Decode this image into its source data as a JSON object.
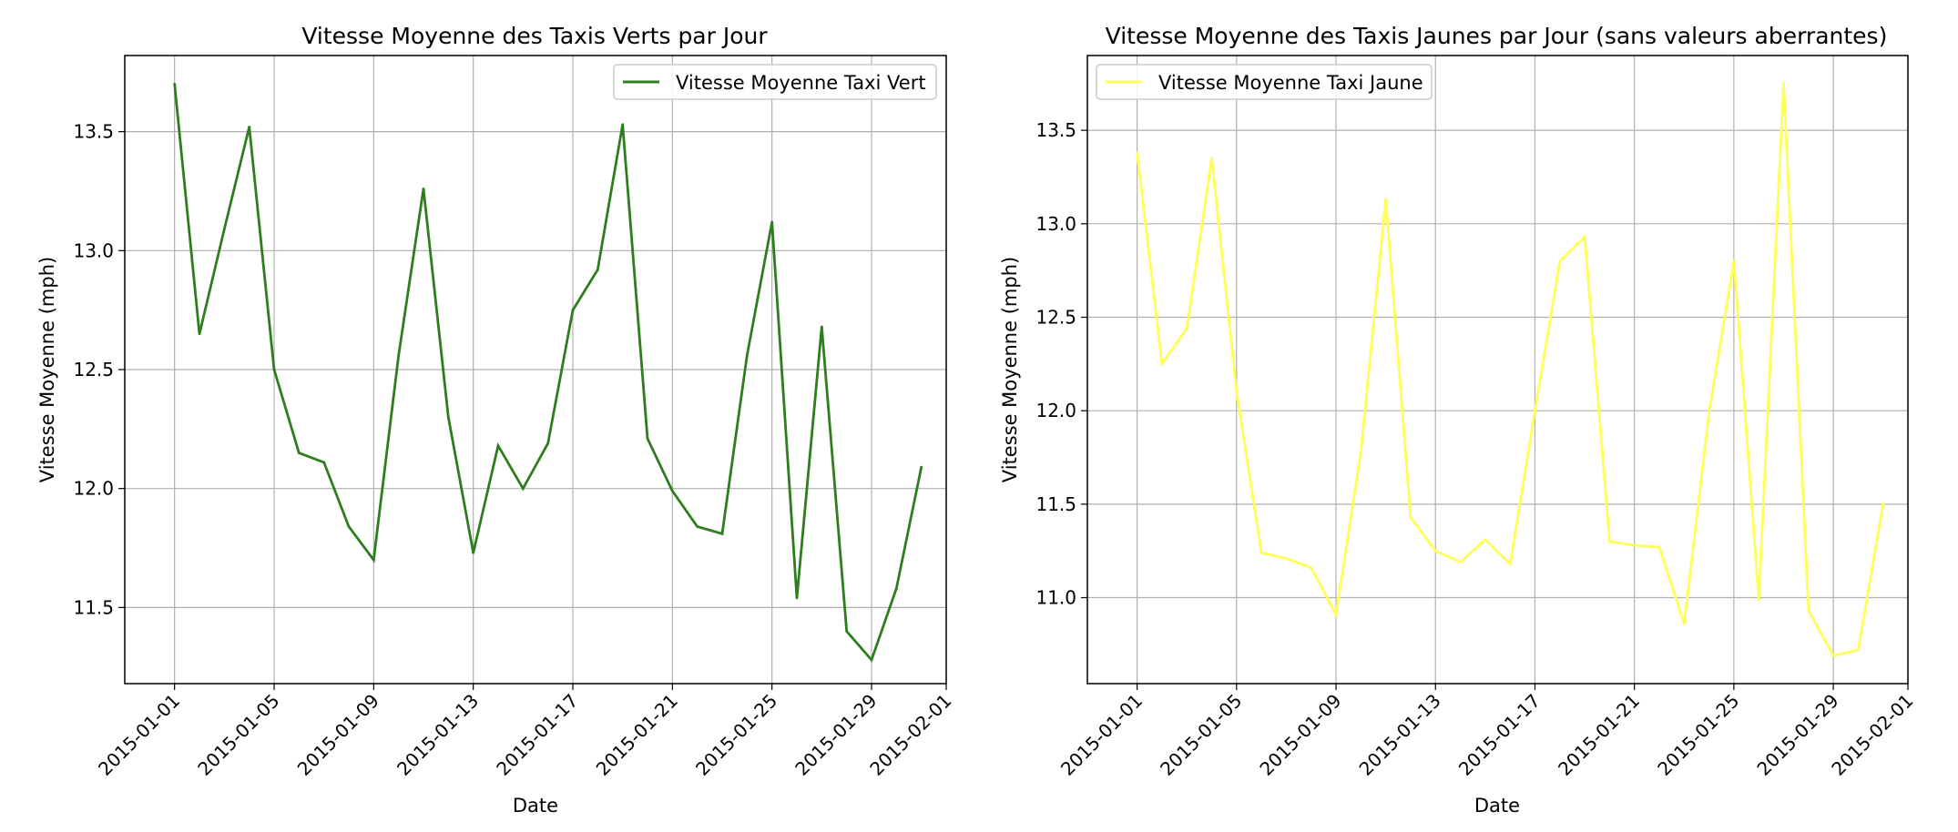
{
  "chart_data": [
    {
      "type": "line",
      "title": "Vitesse Moyenne des Taxis Verts par Jour",
      "xlabel": "Date",
      "ylabel": "Vitesse Moyenne (mph)",
      "x_ticks": [
        "2015-01-01",
        "2015-01-05",
        "2015-01-09",
        "2015-01-13",
        "2015-01-17",
        "2015-01-21",
        "2015-01-25",
        "2015-01-29",
        "2015-02-01"
      ],
      "y_ticks": [
        "11.5",
        "12.0",
        "12.5",
        "13.0",
        "13.5"
      ],
      "xlim": [
        "2014-12-30",
        "2015-02-01"
      ],
      "ylim": [
        11.18,
        13.82
      ],
      "grid": true,
      "legend_position": "top-right",
      "x": [
        "2015-01-01",
        "2015-01-02",
        "2015-01-03",
        "2015-01-04",
        "2015-01-05",
        "2015-01-06",
        "2015-01-07",
        "2015-01-08",
        "2015-01-09",
        "2015-01-10",
        "2015-01-11",
        "2015-01-12",
        "2015-01-13",
        "2015-01-14",
        "2015-01-15",
        "2015-01-16",
        "2015-01-17",
        "2015-01-18",
        "2015-01-19",
        "2015-01-20",
        "2015-01-21",
        "2015-01-22",
        "2015-01-23",
        "2015-01-24",
        "2015-01-25",
        "2015-01-26",
        "2015-01-27",
        "2015-01-28",
        "2015-01-29",
        "2015-01-30",
        "2015-01-31"
      ],
      "series": [
        {
          "name": "Vitesse Moyenne Taxi Vert",
          "color": "#2e7d1e",
          "values": [
            13.7,
            12.65,
            13.09,
            13.52,
            12.5,
            12.15,
            12.11,
            11.84,
            11.7,
            12.56,
            13.26,
            12.3,
            11.73,
            12.18,
            12.0,
            12.19,
            12.75,
            12.92,
            13.53,
            12.21,
            11.99,
            11.84,
            11.81,
            12.56,
            13.12,
            11.54,
            12.68,
            11.4,
            11.28,
            11.58,
            12.09
          ]
        }
      ]
    },
    {
      "type": "line",
      "title": "Vitesse Moyenne des Taxis Jaunes par Jour (sans valeurs aberrantes)",
      "xlabel": "Date",
      "ylabel": "Vitesse Moyenne (mph)",
      "x_ticks": [
        "2015-01-01",
        "2015-01-05",
        "2015-01-09",
        "2015-01-13",
        "2015-01-17",
        "2015-01-21",
        "2015-01-25",
        "2015-01-29",
        "2015-02-01"
      ],
      "y_ticks": [
        "11.0",
        "11.5",
        "12.0",
        "12.5",
        "13.0",
        "13.5"
      ],
      "xlim": [
        "2014-12-30",
        "2015-02-01"
      ],
      "ylim": [
        10.54,
        13.9
      ],
      "grid": true,
      "legend_position": "top-left",
      "x": [
        "2015-01-01",
        "2015-01-02",
        "2015-01-03",
        "2015-01-04",
        "2015-01-05",
        "2015-01-06",
        "2015-01-07",
        "2015-01-08",
        "2015-01-09",
        "2015-01-10",
        "2015-01-11",
        "2015-01-12",
        "2015-01-13",
        "2015-01-14",
        "2015-01-15",
        "2015-01-16",
        "2015-01-17",
        "2015-01-18",
        "2015-01-19",
        "2015-01-20",
        "2015-01-21",
        "2015-01-22",
        "2015-01-23",
        "2015-01-24",
        "2015-01-25",
        "2015-01-26",
        "2015-01-27",
        "2015-01-28",
        "2015-01-29",
        "2015-01-30",
        "2015-01-31"
      ],
      "series": [
        {
          "name": "Vitesse Moyenne Taxi Jaune",
          "color": "#ffff55",
          "values": [
            13.38,
            12.25,
            12.44,
            13.35,
            12.1,
            11.24,
            11.21,
            11.16,
            10.91,
            11.78,
            13.13,
            11.43,
            11.25,
            11.19,
            11.31,
            11.18,
            12.0,
            12.8,
            12.93,
            11.3,
            11.28,
            11.27,
            10.86,
            11.99,
            12.8,
            10.99,
            13.75,
            10.93,
            10.69,
            10.72,
            11.5
          ]
        }
      ]
    }
  ]
}
